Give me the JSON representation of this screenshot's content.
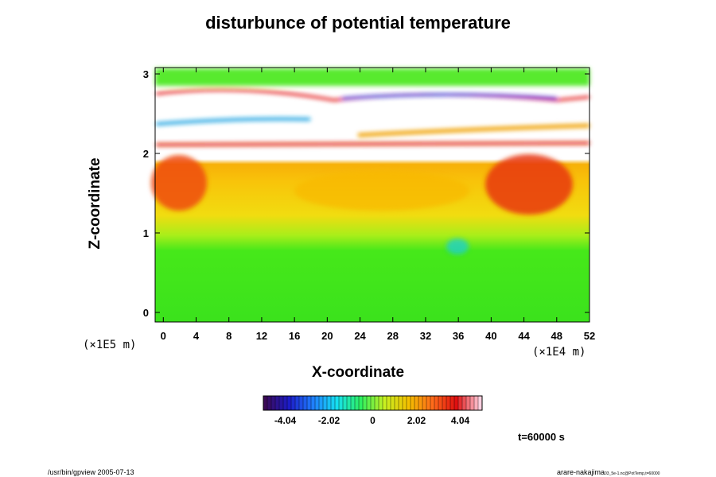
{
  "chart_data": {
    "type": "heatmap",
    "title": "disturbunce of potential temperature",
    "xlabel": "X-coordinate",
    "ylabel": "Z-coordinate",
    "x_scale_label": "(×1E4 m)",
    "y_scale_label": "(×1E5 m)",
    "x_ticks": [
      "0",
      "4",
      "8",
      "12",
      "16",
      "20",
      "24",
      "28",
      "32",
      "36",
      "40",
      "44",
      "48",
      "52"
    ],
    "y_ticks": [
      "0",
      "1",
      "2",
      "3"
    ],
    "xlim": [
      -1,
      52
    ],
    "ylim": [
      -0.12,
      3.08
    ],
    "colorbar": {
      "range": [
        -5.05,
        5.05
      ],
      "tick_labels": [
        "-4.04",
        "-2.02",
        "0",
        "2.02",
        "4.04"
      ],
      "colors": [
        "#3b0a57",
        "#1c1cc8",
        "#1f7fff",
        "#16e0f0",
        "#2ef060",
        "#c8f020",
        "#f4c000",
        "#ff6b1a",
        "#e01010",
        "#ffd0e0"
      ]
    },
    "field_regions": [
      {
        "z_range": [
          0,
          1.0
        ],
        "value": "≈0 to +0.5",
        "color": "green"
      },
      {
        "z_range": [
          1.0,
          1.4
        ],
        "value": "≈+1 to +2",
        "color": "yellow-green"
      },
      {
        "z_range": [
          1.4,
          2.0
        ],
        "value": "≈+2.5 to +3",
        "color": "yellow/orange"
      },
      {
        "z_range": [
          1.2,
          1.9
        ],
        "value": "≈+4 (convective plumes at x≈2-6 and x≈40-48)",
        "color": "red"
      },
      {
        "z_range": [
          2.0,
          3.0
        ],
        "value": "out-of-range bands",
        "color": "white"
      }
    ],
    "time_label": "t=60000 s"
  },
  "footer": {
    "left": "/usr/bin/gpview 2005-07-13",
    "right": "arare-nakajima",
    "right_small": "03_5e-1.nc@PotTemp,t=60000"
  }
}
